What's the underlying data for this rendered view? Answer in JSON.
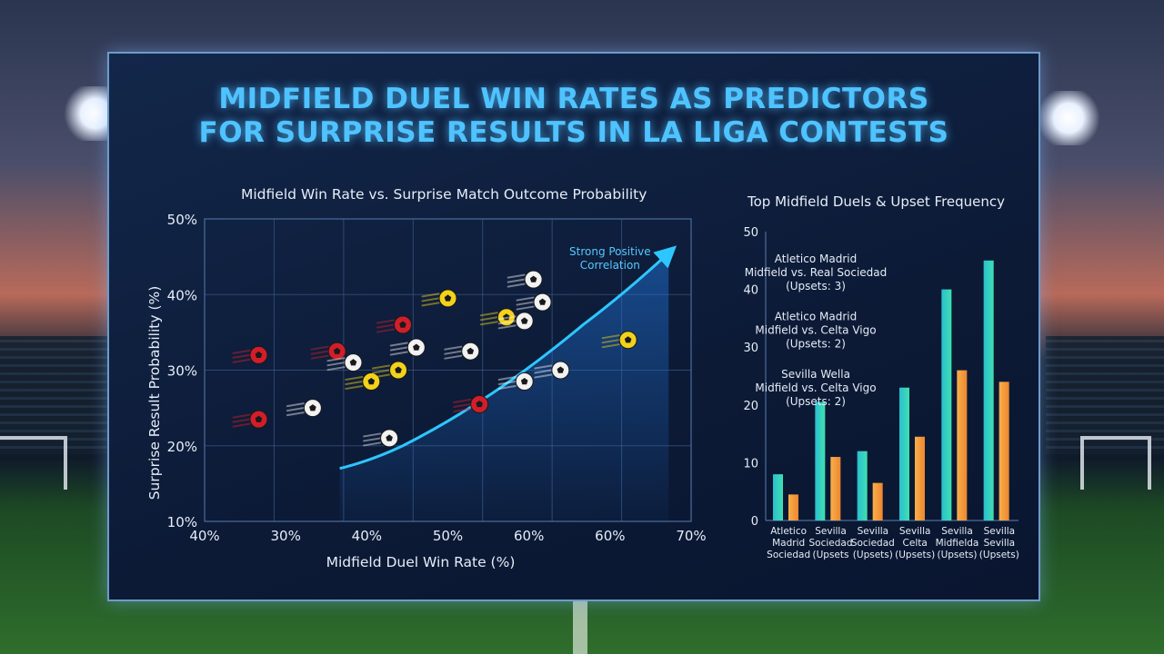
{
  "title_lines": [
    "MIDFIELD DUEL WIN RATES AS PREDICTORS",
    "FOR SURPRISE RESULTS IN LA LIGA CONTESTS"
  ],
  "colors": {
    "title": "#4fc3ff",
    "trend": "#2ec6ff",
    "teal_bar": "#35d1b9",
    "orange_bar": "#f29a3c",
    "ball_red": "#d21e2a",
    "ball_yellow": "#f2d21a",
    "ball_white": "#f2f2f2"
  },
  "chart_data": [
    {
      "type": "scatter",
      "title": "Midfield Win Rate vs. Surprise Match Outcome Probability",
      "xlabel": "Midfield Duel Win Rate (%)",
      "ylabel": "Surprise Result Probability (%)",
      "x_ticks": [
        "40%",
        "30%",
        "40%",
        "50%",
        "60%",
        "60%",
        "70%"
      ],
      "y_ticks": [
        "10%",
        "20%",
        "30%",
        "40%",
        "50%"
      ],
      "ylim": [
        10,
        50
      ],
      "grid": true,
      "annotation": [
        "Strong Positive",
        "Correlation"
      ],
      "points": [
        {
          "x": 34,
          "y": 32,
          "color": "red"
        },
        {
          "x": 34,
          "y": 23.5,
          "color": "red"
        },
        {
          "x": 40,
          "y": 25,
          "color": "white"
        },
        {
          "x": 42.7,
          "y": 32.5,
          "color": "red"
        },
        {
          "x": 44.5,
          "y": 31,
          "color": "white"
        },
        {
          "x": 46.5,
          "y": 28.5,
          "color": "yellow"
        },
        {
          "x": 48.5,
          "y": 21,
          "color": "white"
        },
        {
          "x": 49.5,
          "y": 30,
          "color": "yellow"
        },
        {
          "x": 50,
          "y": 36,
          "color": "red"
        },
        {
          "x": 51.5,
          "y": 33,
          "color": "white"
        },
        {
          "x": 55,
          "y": 39.5,
          "color": "yellow"
        },
        {
          "x": 57.5,
          "y": 32.5,
          "color": "white"
        },
        {
          "x": 58.5,
          "y": 25.5,
          "color": "red"
        },
        {
          "x": 61.5,
          "y": 37,
          "color": "yellow"
        },
        {
          "x": 63.5,
          "y": 36.5,
          "color": "white"
        },
        {
          "x": 63.5,
          "y": 28.5,
          "color": "white"
        },
        {
          "x": 64.5,
          "y": 42,
          "color": "white"
        },
        {
          "x": 65.5,
          "y": 39,
          "color": "white"
        },
        {
          "x": 67.5,
          "y": 30,
          "color": "white"
        },
        {
          "x": 75,
          "y": 34,
          "color": "yellow"
        }
      ],
      "trend": [
        [
          43,
          17
        ],
        [
          50,
          20
        ],
        [
          60,
          27
        ],
        [
          70,
          36
        ],
        [
          79.5,
          45.5
        ]
      ]
    },
    {
      "type": "bar",
      "title": "Top Midfield Duels & Upset Frequency",
      "y_ticks": [
        "0",
        "10",
        "20",
        "30",
        "40",
        "50"
      ],
      "ylim": [
        0,
        50
      ],
      "categories": [
        [
          "Atletico",
          "Madrid",
          "Sociedad"
        ],
        [
          "Sevilla",
          "Sociedad",
          "(Upsets"
        ],
        [
          "Sevilla",
          "Sociedad",
          "(Upsets)"
        ],
        [
          "Sevilla",
          "Celta",
          "(Upsets)"
        ],
        [
          "Sevilla",
          "Midfielda",
          "(Upsets)"
        ],
        [
          "Sevilla",
          "Sevilla",
          "(Upsets)"
        ]
      ],
      "series": [
        {
          "values": [
            8,
            20.5,
            12,
            23,
            40,
            45
          ]
        },
        {
          "values": [
            4.5,
            11,
            6.5,
            14.5,
            26,
            24
          ]
        }
      ],
      "annotations": [
        {
          "lines": [
            "Atletico Madrid",
            "Midfield vs. Real Sociedad",
            "(Upsets: 3)"
          ],
          "y": 45
        },
        {
          "lines": [
            "Atletico Madrid",
            "Midfield vs. Celta Vigo",
            "(Upsets: 2)"
          ],
          "y": 35
        },
        {
          "lines": [
            "Sevilla Wella",
            "Midfield vs. Celta Vigo",
            "(Upsets: 2)"
          ],
          "y": 25
        }
      ]
    }
  ]
}
